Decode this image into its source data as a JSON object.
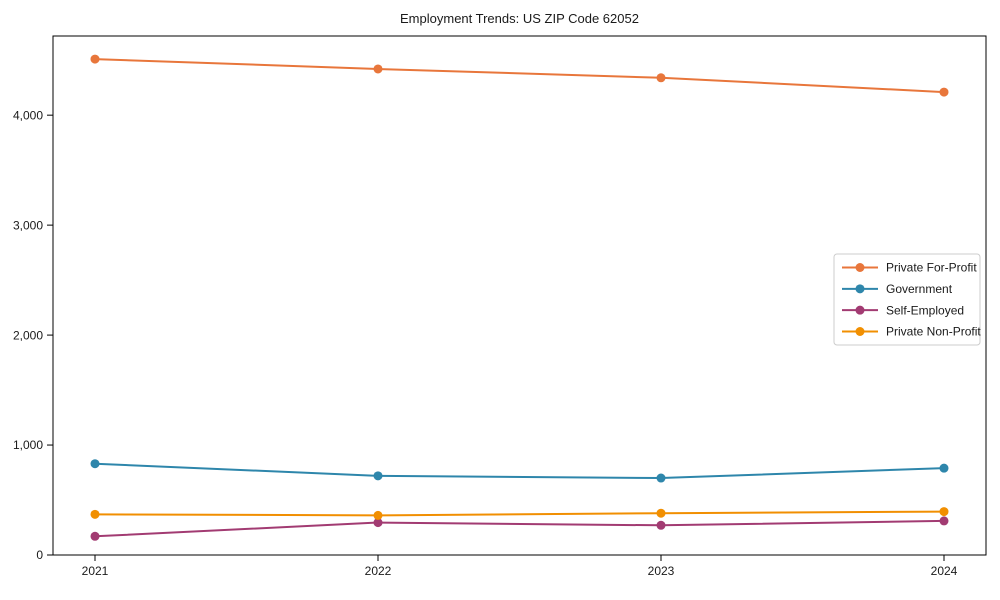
{
  "chart_data": {
    "type": "line",
    "title": "Employment Trends: US ZIP Code 62052",
    "xlabel": "",
    "ylabel": "",
    "x": [
      2021,
      2022,
      2023,
      2024
    ],
    "x_tick_labels": [
      "2021",
      "2022",
      "2023",
      "2024"
    ],
    "y_ticks": [
      0,
      1000,
      2000,
      3000,
      4000
    ],
    "y_tick_labels": [
      "0",
      "1,000",
      "2,000",
      "3,000",
      "4,000"
    ],
    "ylim": [
      0,
      4720
    ],
    "grid": false,
    "legend_position": "center right",
    "marker": "circle",
    "background_color": "#ffffff",
    "spine_color": "#000000",
    "legend_border_color": "#cccccc",
    "series": [
      {
        "name": "Private For-Profit",
        "color": "#E8763B",
        "values": [
          4510,
          4420,
          4340,
          4210
        ]
      },
      {
        "name": "Government",
        "color": "#2E86AB",
        "values": [
          830,
          720,
          700,
          790
        ]
      },
      {
        "name": "Self-Employed",
        "color": "#A23B72",
        "values": [
          170,
          295,
          270,
          310
        ]
      },
      {
        "name": "Private Non-Profit",
        "color": "#F18F01",
        "values": [
          370,
          360,
          380,
          395
        ]
      }
    ]
  }
}
